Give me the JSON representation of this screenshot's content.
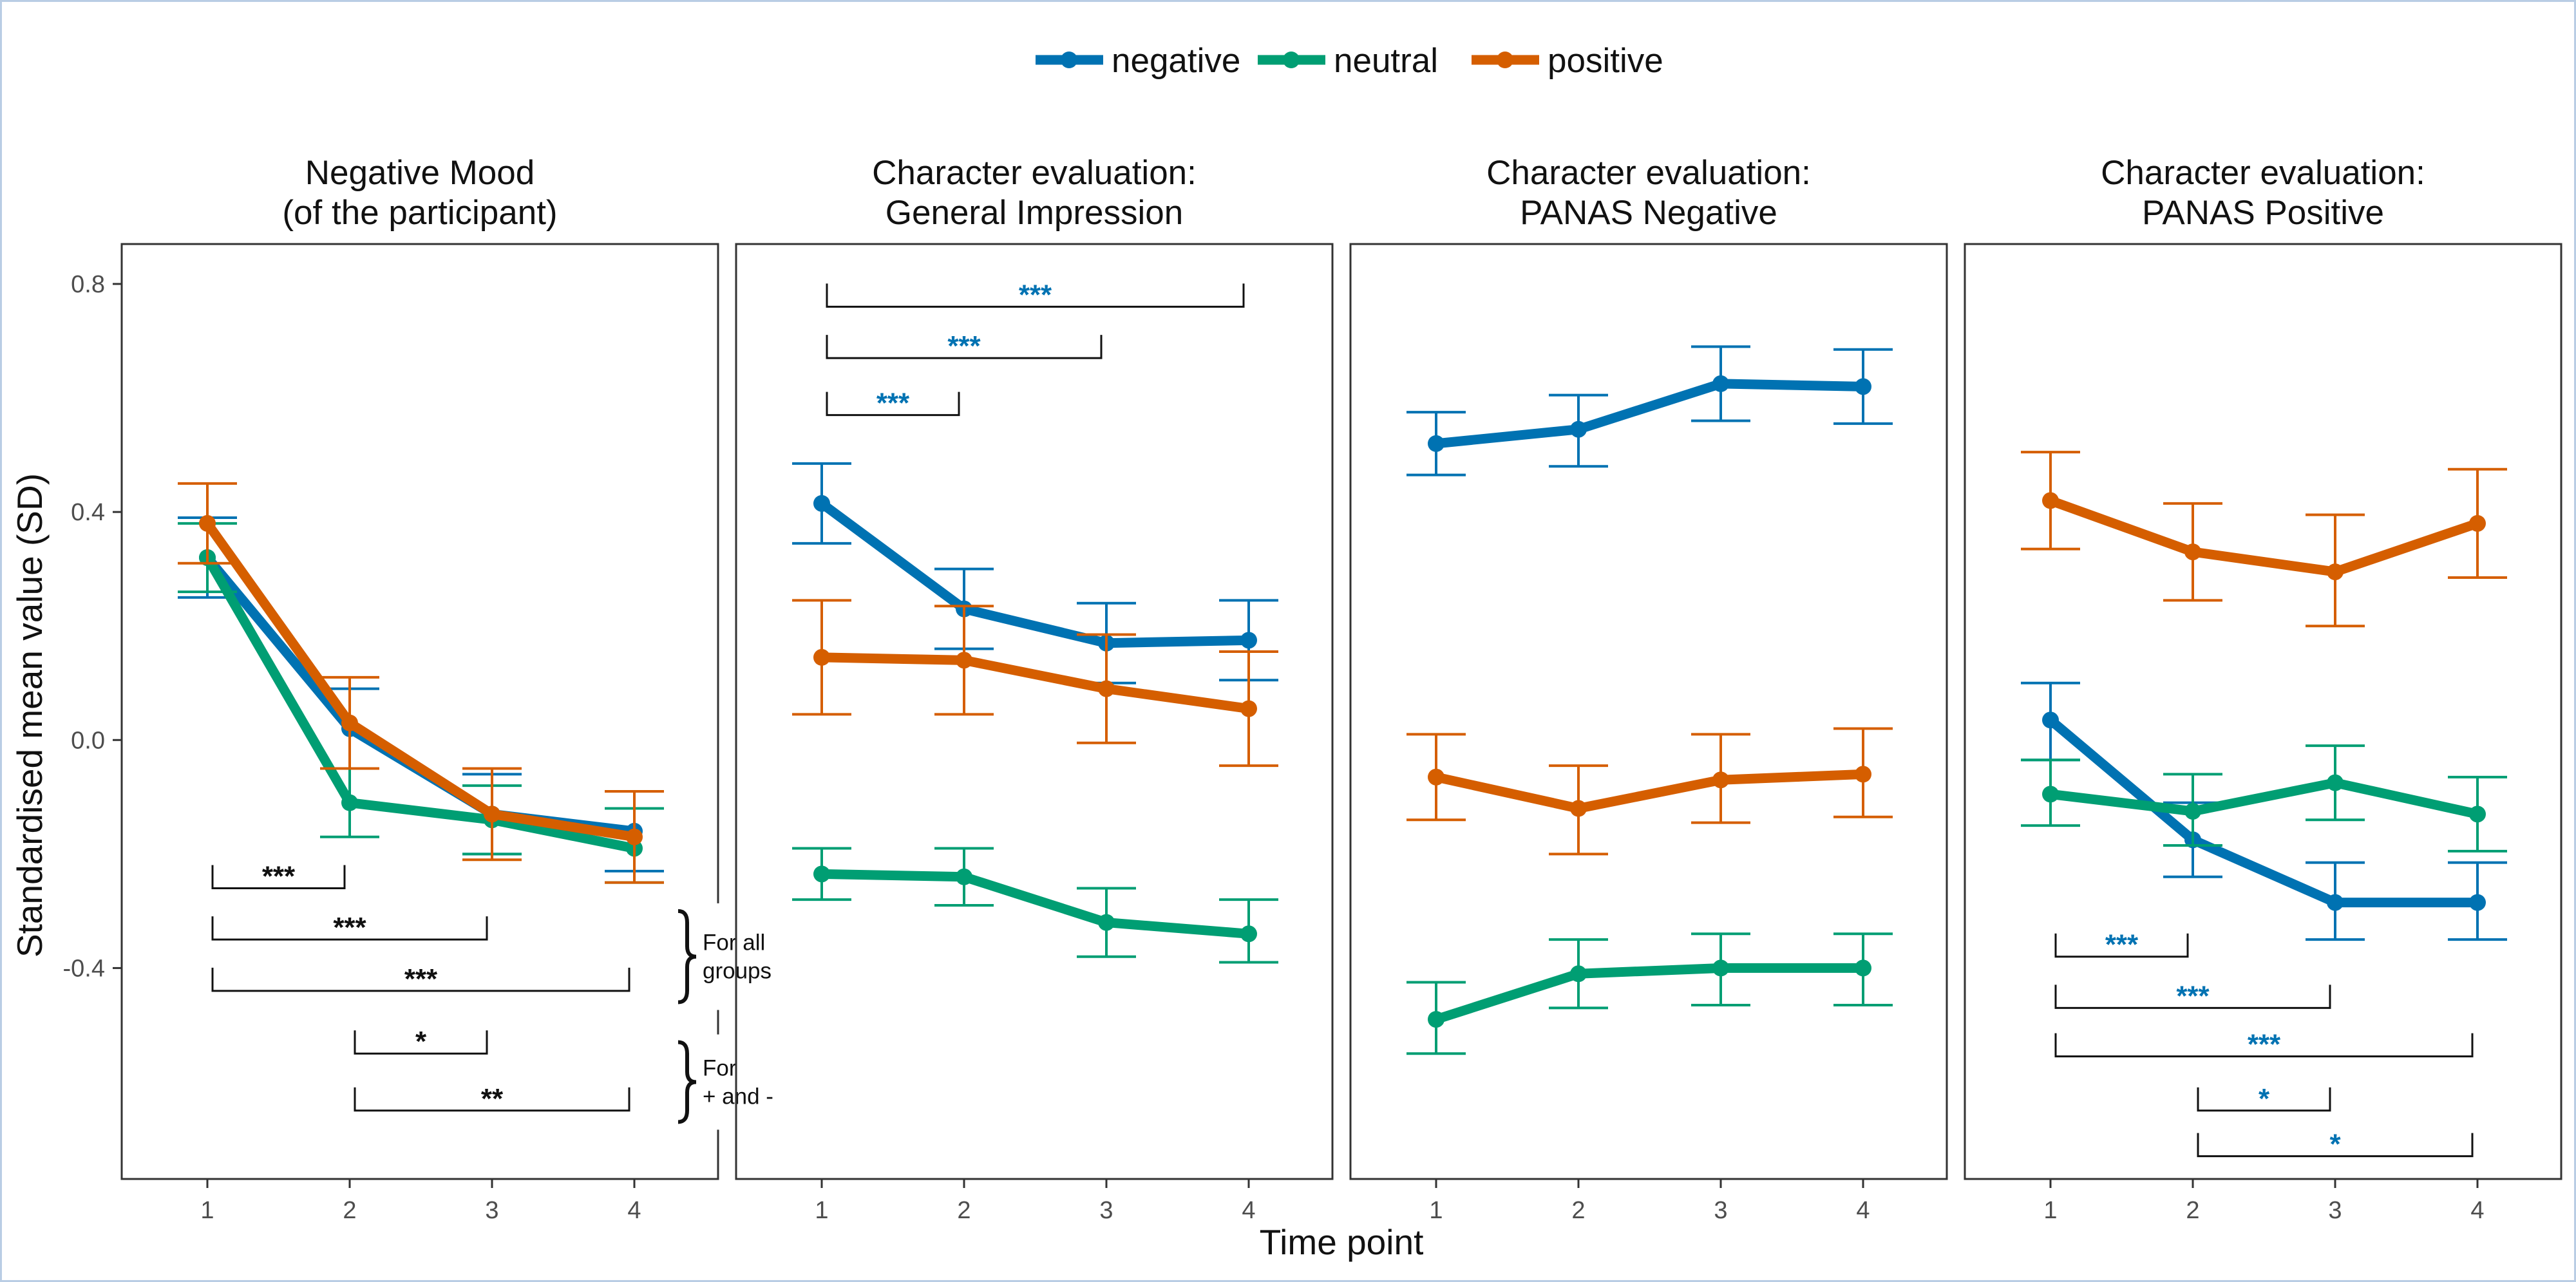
{
  "colors": {
    "negative": "#0072B2",
    "neutral": "#009E73",
    "positive": "#D55E00",
    "sig_black": "#111111"
  },
  "legend": {
    "placement": "top-center",
    "entries": [
      {
        "key": "negative",
        "label": "negative"
      },
      {
        "key": "neutral",
        "label": "neutral"
      },
      {
        "key": "positive",
        "label": "positive"
      }
    ]
  },
  "axes": {
    "xlabel": "Time point",
    "ylabel": "Standardised mean value (SD)",
    "x_ticks": [
      "1",
      "2",
      "3",
      "4"
    ],
    "y_ticks": [
      "0.8",
      "0.4",
      "0.0",
      "-0.4"
    ],
    "y_tick_values": [
      0.8,
      0.4,
      0.0,
      -0.4
    ],
    "ylim": [
      -0.77,
      0.87
    ]
  },
  "chart_data": [
    {
      "type": "line",
      "title_line1": "Negative Mood",
      "title_line2": "(of the participant)",
      "x": [
        1,
        2,
        3,
        4
      ],
      "series": [
        {
          "key": "negative",
          "values": [
            0.32,
            0.02,
            -0.13,
            -0.16
          ],
          "err_low": [
            0.25,
            -0.05,
            -0.2,
            -0.23
          ],
          "err_high": [
            0.39,
            0.09,
            -0.06,
            -0.09
          ]
        },
        {
          "key": "neutral",
          "values": [
            0.32,
            -0.11,
            -0.14,
            -0.19
          ],
          "err_low": [
            0.26,
            -0.17,
            -0.2,
            -0.25
          ],
          "err_high": [
            0.38,
            -0.05,
            -0.08,
            -0.12
          ]
        },
        {
          "key": "positive",
          "values": [
            0.38,
            0.03,
            -0.13,
            -0.17
          ],
          "err_low": [
            0.31,
            -0.05,
            -0.21,
            -0.25
          ],
          "err_high": [
            0.45,
            0.11,
            -0.05,
            -0.09
          ]
        }
      ],
      "significance": [
        {
          "from": 1,
          "to": 2,
          "y": -0.26,
          "label": "***",
          "color": "sig_black"
        },
        {
          "from": 1,
          "to": 3,
          "y": -0.35,
          "label": "***",
          "color": "sig_black"
        },
        {
          "from": 1,
          "to": 4,
          "y": -0.44,
          "label": "***",
          "color": "sig_black"
        },
        {
          "from": 2,
          "to": 3,
          "y": -0.55,
          "label": "*",
          "color": "sig_black"
        },
        {
          "from": 2,
          "to": 4,
          "y": -0.65,
          "label": "**",
          "color": "sig_black"
        }
      ],
      "notes": [
        {
          "line1": "For all",
          "line2": "groups",
          "y_top": -0.3,
          "y_bottom": -0.46
        },
        {
          "line1": "For",
          "line2": "+ and -",
          "y_top": -0.53,
          "y_bottom": -0.67
        }
      ]
    },
    {
      "type": "line",
      "title_line1": "Character evaluation:",
      "title_line2": "General Impression",
      "x": [
        1,
        2,
        3,
        4
      ],
      "series": [
        {
          "key": "negative",
          "values": [
            0.415,
            0.23,
            0.17,
            0.175
          ],
          "err_low": [
            0.345,
            0.16,
            0.1,
            0.105
          ],
          "err_high": [
            0.485,
            0.3,
            0.24,
            0.245
          ]
        },
        {
          "key": "neutral",
          "values": [
            -0.235,
            -0.24,
            -0.32,
            -0.34
          ],
          "err_low": [
            -0.28,
            -0.29,
            -0.38,
            -0.39
          ],
          "err_high": [
            -0.19,
            -0.19,
            -0.26,
            -0.28
          ]
        },
        {
          "key": "positive",
          "values": [
            0.145,
            0.14,
            0.09,
            0.055
          ],
          "err_low": [
            0.045,
            0.045,
            -0.005,
            -0.045
          ],
          "err_high": [
            0.245,
            0.235,
            0.185,
            0.155
          ]
        }
      ],
      "significance": [
        {
          "from": 1,
          "to": 4,
          "y": 0.76,
          "label": "***",
          "color": "negative"
        },
        {
          "from": 1,
          "to": 3,
          "y": 0.67,
          "label": "***",
          "color": "negative"
        },
        {
          "from": 1,
          "to": 2,
          "y": 0.57,
          "label": "***",
          "color": "negative"
        }
      ],
      "notes": []
    },
    {
      "type": "line",
      "title_line1": "Character evaluation:",
      "title_line2": "PANAS Negative",
      "x": [
        1,
        2,
        3,
        4
      ],
      "series": [
        {
          "key": "negative",
          "values": [
            0.52,
            0.545,
            0.625,
            0.62
          ],
          "err_low": [
            0.465,
            0.48,
            0.56,
            0.555
          ],
          "err_high": [
            0.575,
            0.605,
            0.69,
            0.685
          ]
        },
        {
          "key": "neutral",
          "values": [
            -0.49,
            -0.41,
            -0.4,
            -0.4
          ],
          "err_low": [
            -0.55,
            -0.47,
            -0.465,
            -0.465
          ],
          "err_high": [
            -0.425,
            -0.35,
            -0.34,
            -0.34
          ]
        },
        {
          "key": "positive",
          "values": [
            -0.065,
            -0.12,
            -0.07,
            -0.06
          ],
          "err_low": [
            -0.14,
            -0.2,
            -0.145,
            -0.135
          ],
          "err_high": [
            0.01,
            -0.045,
            0.01,
            0.02
          ]
        }
      ],
      "significance": [],
      "notes": []
    },
    {
      "type": "line",
      "title_line1": "Character evaluation:",
      "title_line2": "PANAS Positive",
      "x": [
        1,
        2,
        3,
        4
      ],
      "series": [
        {
          "key": "negative",
          "values": [
            0.035,
            -0.175,
            -0.285,
            -0.285
          ],
          "err_low": [
            -0.035,
            -0.24,
            -0.35,
            -0.35
          ],
          "err_high": [
            0.1,
            -0.11,
            -0.215,
            -0.215
          ]
        },
        {
          "key": "neutral",
          "values": [
            -0.095,
            -0.125,
            -0.075,
            -0.13
          ],
          "err_low": [
            -0.15,
            -0.185,
            -0.14,
            -0.195
          ],
          "err_high": [
            -0.035,
            -0.06,
            -0.01,
            -0.065
          ]
        },
        {
          "key": "positive",
          "values": [
            0.42,
            0.33,
            0.295,
            0.38
          ],
          "err_low": [
            0.335,
            0.245,
            0.2,
            0.285
          ],
          "err_high": [
            0.505,
            0.415,
            0.395,
            0.475
          ]
        }
      ],
      "significance": [
        {
          "from": 1,
          "to": 2,
          "y": -0.38,
          "label": "***",
          "color": "negative"
        },
        {
          "from": 1,
          "to": 3,
          "y": -0.47,
          "label": "***",
          "color": "negative"
        },
        {
          "from": 1,
          "to": 4,
          "y": -0.555,
          "label": "***",
          "color": "negative"
        },
        {
          "from": 2,
          "to": 3,
          "y": -0.65,
          "label": "*",
          "color": "negative"
        },
        {
          "from": 2,
          "to": 4,
          "y": -0.73,
          "label": "*",
          "color": "negative"
        }
      ],
      "notes": []
    }
  ]
}
